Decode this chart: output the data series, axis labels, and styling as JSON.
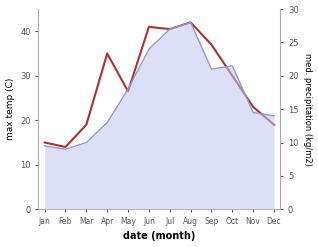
{
  "months": [
    "Jan",
    "Feb",
    "Mar",
    "Apr",
    "May",
    "Jun",
    "Jul",
    "Aug",
    "Sep",
    "Oct",
    "Nov",
    "Dec"
  ],
  "month_indices": [
    0,
    1,
    2,
    3,
    4,
    5,
    6,
    7,
    8,
    9,
    10,
    11
  ],
  "max_temp": [
    15.0,
    14.0,
    19.0,
    35.0,
    26.5,
    41.0,
    40.5,
    42.0,
    37.0,
    30.0,
    23.0,
    19.0
  ],
  "precipitation": [
    9.5,
    9.0,
    10.0,
    13.0,
    18.0,
    24.0,
    27.0,
    28.0,
    21.0,
    21.5,
    14.5,
    14.0
  ],
  "temp_color": "#b03030",
  "precip_fill_color": "#c0c8f0",
  "precip_line_color": "#9099cc",
  "left_ylabel": "max temp (C)",
  "right_ylabel": "med. precipitation (kg/m2)",
  "xlabel": "date (month)",
  "ylim_left": [
    0,
    45
  ],
  "ylim_right": [
    0,
    30
  ],
  "yticks_left": [
    0,
    10,
    20,
    30,
    40
  ],
  "yticks_right": [
    0,
    5,
    10,
    15,
    20,
    25,
    30
  ],
  "fig_bg": "#ffffff",
  "plot_bg": "#ffffff"
}
